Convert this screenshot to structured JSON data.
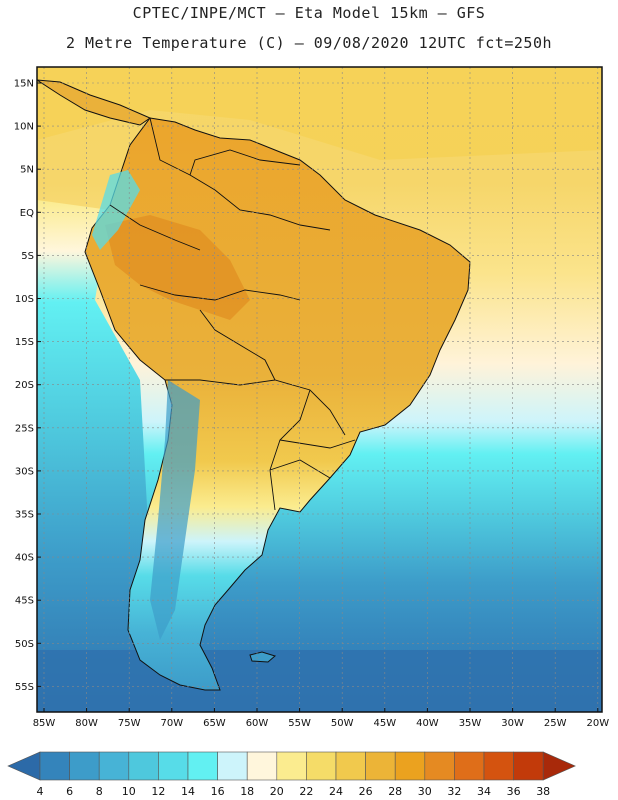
{
  "header": {
    "line1": "CPTEC/INPE/MCT –  Eta Model 15km – GFS",
    "line2": "2 Metre Temperature (C) – 09/08/2020 12UTC fct=250h"
  },
  "map": {
    "lat_labels": [
      "15N",
      "10N",
      "5N",
      "EQ",
      "5S",
      "10S",
      "15S",
      "20S",
      "25S",
      "30S",
      "35S",
      "40S",
      "45S",
      "50S",
      "55S"
    ],
    "lon_labels": [
      "85W",
      "80W",
      "75W",
      "70W",
      "65W",
      "60W",
      "55W",
      "50W",
      "45W",
      "40W",
      "35W",
      "30W",
      "25W",
      "20W"
    ],
    "land_color": "#e9a93a",
    "ocean_warm": "#f7d766",
    "ocean_cool": "#4fc9d9"
  },
  "colorbar": {
    "labels": [
      "4",
      "6",
      "8",
      "10",
      "12",
      "14",
      "16",
      "18",
      "20",
      "22",
      "24",
      "26",
      "28",
      "30",
      "32",
      "34",
      "36",
      "38"
    ],
    "colors": [
      "#2c6aa8",
      "#3484bb",
      "#3d9cc9",
      "#47b3d6",
      "#4ec8dd",
      "#57dce8",
      "#62f0f2",
      "#cdf4fb",
      "#fff6dc",
      "#fbec8f",
      "#f5dc68",
      "#f1c94d",
      "#ecb437",
      "#eba21f",
      "#e58a22",
      "#df6e19",
      "#d4530f",
      "#c23a0a",
      "#a8290a"
    ]
  }
}
